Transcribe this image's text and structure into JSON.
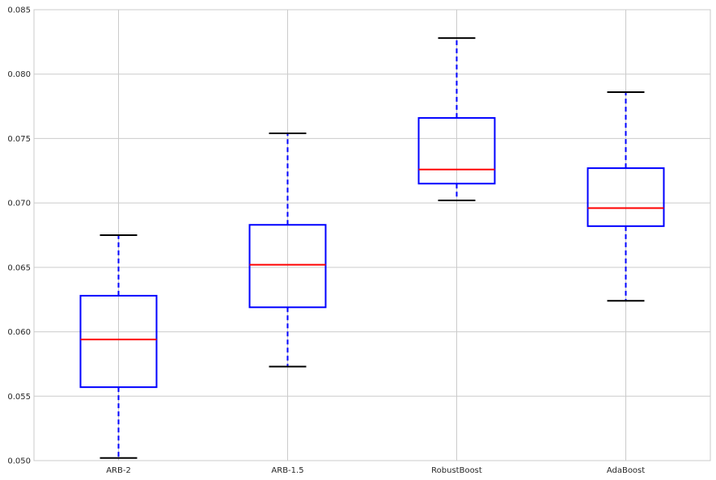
{
  "chart_data": {
    "type": "box",
    "title": "",
    "xlabel": "",
    "ylabel": "",
    "ylim": [
      0.05,
      0.085
    ],
    "yticks": [
      "0.050",
      "0.055",
      "0.060",
      "0.065",
      "0.070",
      "0.075",
      "0.080",
      "0.085"
    ],
    "grid": true,
    "categories": [
      "ARB-2",
      "ARB-1.5",
      "RobustBoost",
      "AdaBoost"
    ],
    "boxes": [
      {
        "whisker_low": 0.0502,
        "q1": 0.0557,
        "median": 0.0594,
        "q3": 0.0628,
        "whisker_high": 0.0675
      },
      {
        "whisker_low": 0.0573,
        "q1": 0.0619,
        "median": 0.0652,
        "q3": 0.0683,
        "whisker_high": 0.0754
      },
      {
        "whisker_low": 0.0702,
        "q1": 0.0715,
        "median": 0.0726,
        "q3": 0.0766,
        "whisker_high": 0.0828
      },
      {
        "whisker_low": 0.0624,
        "q1": 0.0682,
        "median": 0.0696,
        "q3": 0.0727,
        "whisker_high": 0.0786
      }
    ],
    "colors": {
      "box": "#0000ff",
      "median": "#ff0000",
      "cap": "#000000",
      "grid": "#cbcbcb",
      "frame": "#cbcbcb"
    }
  }
}
